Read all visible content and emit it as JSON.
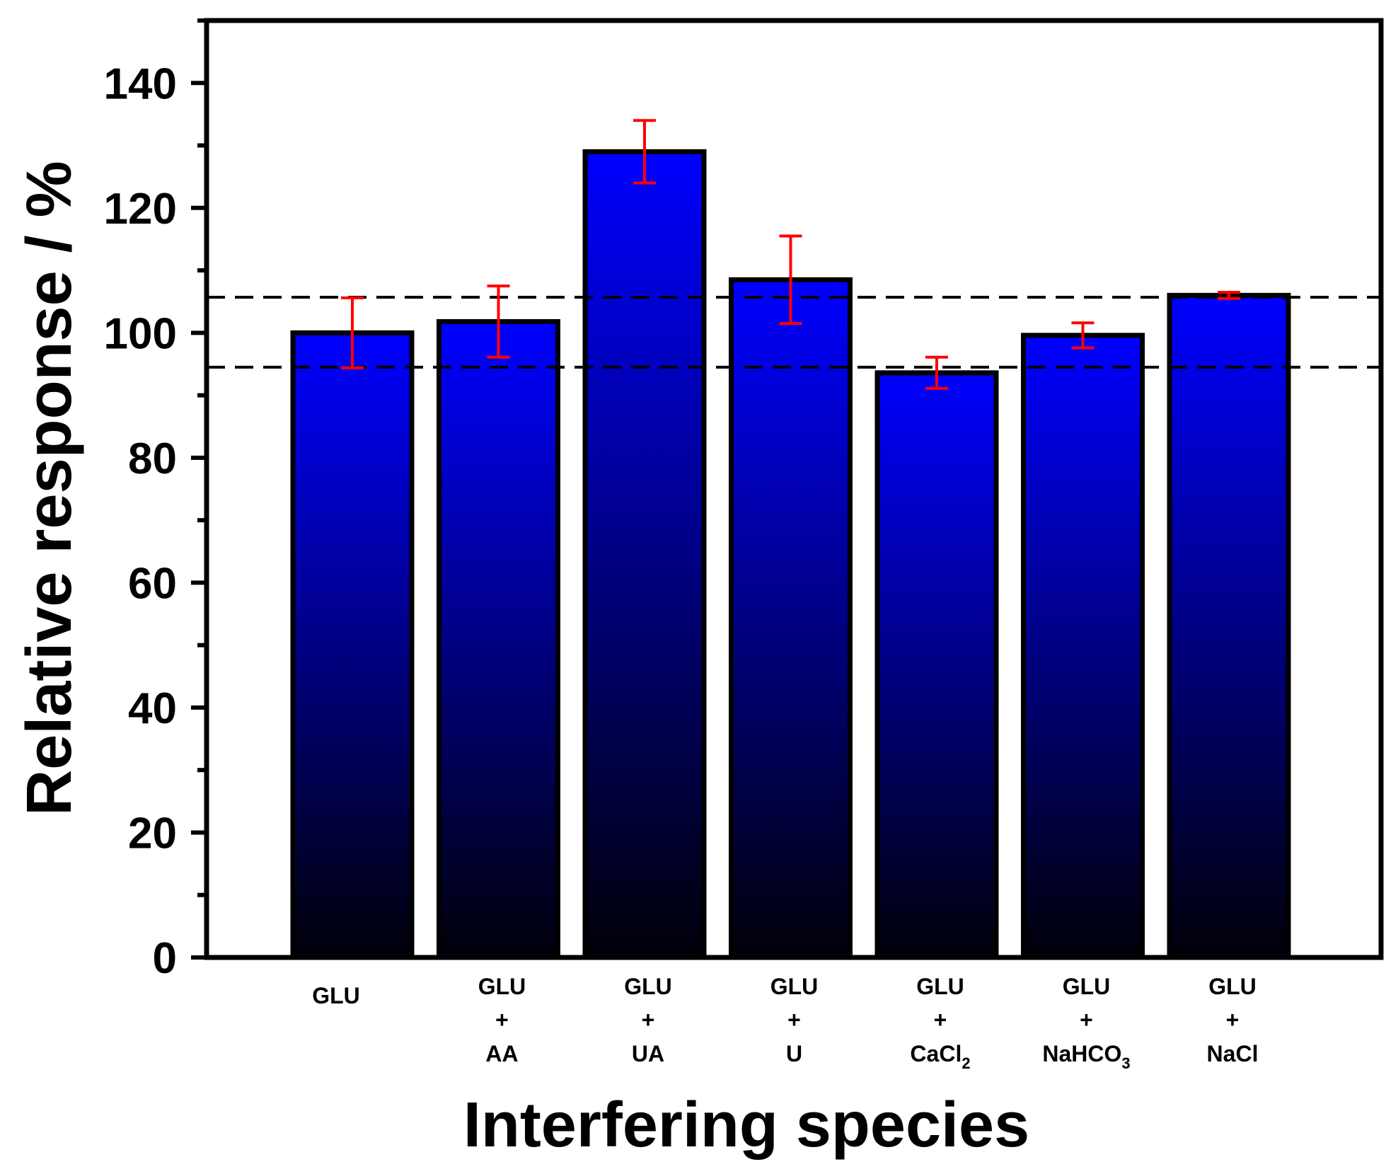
{
  "chart_data": {
    "type": "bar",
    "xlabel": "Interfering species",
    "ylabel": "Relative response / %",
    "ylim": [
      0,
      150
    ],
    "yticks": [
      0,
      20,
      40,
      60,
      80,
      100,
      120,
      140
    ],
    "grid": false,
    "categories": [
      {
        "lines": [
          "GLU"
        ]
      },
      {
        "lines": [
          "GLU",
          "+",
          "AA"
        ]
      },
      {
        "lines": [
          "GLU",
          "+",
          "UA"
        ]
      },
      {
        "lines": [
          "GLU",
          "+",
          "U"
        ]
      },
      {
        "lines": [
          "GLU",
          "+",
          "CaCl",
          "2"
        ]
      },
      {
        "lines": [
          "GLU",
          "+",
          "NaHCO",
          "3"
        ]
      },
      {
        "lines": [
          "GLU",
          "+",
          "NaCl"
        ]
      }
    ],
    "values": [
      100,
      101.8,
      129,
      108.5,
      93.6,
      99.6,
      106
    ],
    "errors": [
      5.6,
      5.7,
      5,
      7,
      2.5,
      2,
      0.5
    ],
    "reference_lines": [
      105.7,
      94.5
    ],
    "colors": {
      "bar_top": "#0000ff",
      "bar_bottom": "#000008",
      "bar_edge": "#000000",
      "error_bar": "#ff0000",
      "reference_line": "#000000"
    }
  }
}
